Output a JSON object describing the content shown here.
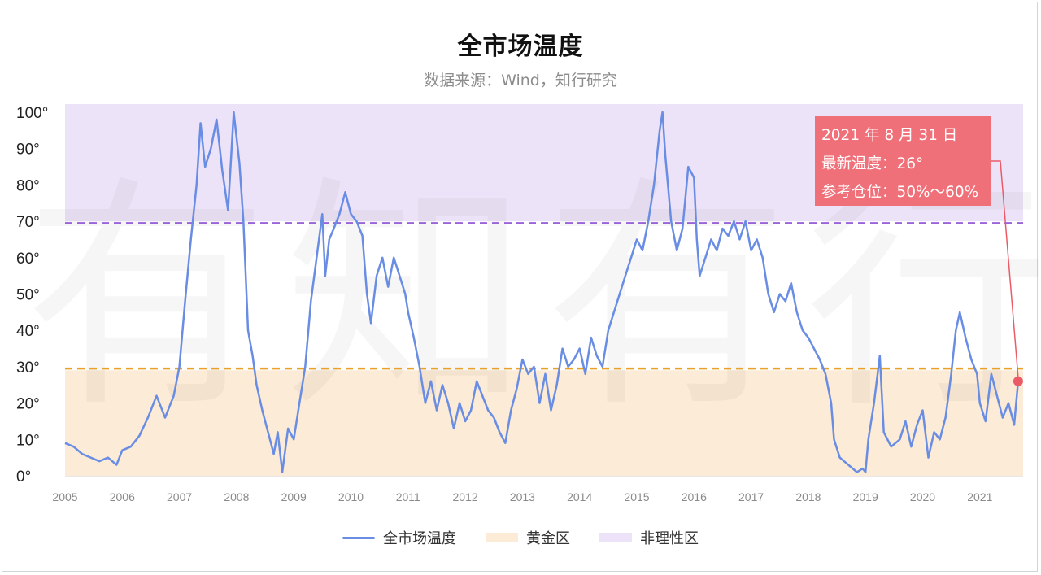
{
  "title": "全市场温度",
  "subtitle": "数据来源：Wind，知行研究",
  "annotation": {
    "date": "2021 年 8 月 31 日",
    "latest": "最新温度：26°",
    "position": "参考仓位：50%～60%"
  },
  "legend": {
    "line": "全市场温度",
    "gold": "黄金区",
    "irrational": "非理性区"
  },
  "colors": {
    "line": "#6a8de4",
    "gold_zone": "#fcebd6",
    "irrational_zone": "#ede3f8",
    "gold_threshold": "#eaa12a",
    "irrational_threshold": "#9b63d9",
    "marker": "#ea5b67"
  },
  "chart_data": {
    "type": "line",
    "title": "全市场温度",
    "subtitle": "数据来源：Wind，知行研究",
    "xlabel": "",
    "ylabel": "",
    "xlim": [
      2005,
      2021.85
    ],
    "ylim": [
      0,
      100
    ],
    "x_ticks": [
      "2005",
      "2006",
      "2007",
      "2008",
      "2009",
      "2010",
      "2011",
      "2012",
      "2013",
      "2014",
      "2015",
      "2016",
      "2017",
      "2018",
      "2019",
      "2020",
      "2021"
    ],
    "y_ticks": [
      "0°",
      "10°",
      "20°",
      "30°",
      "40°",
      "50°",
      "60°",
      "70°",
      "80°",
      "90°",
      "100°"
    ],
    "bands": [
      {
        "name": "黄金区",
        "from": 0,
        "to": 29
      },
      {
        "name": "非理性区",
        "from": 70,
        "to": 101
      }
    ],
    "thresholds": [
      {
        "name": "黄金区",
        "value": 29.5
      },
      {
        "name": "非理性区",
        "value": 69.5
      }
    ],
    "series": [
      {
        "name": "全市场温度",
        "points": [
          [
            2005.0,
            9
          ],
          [
            2005.15,
            8
          ],
          [
            2005.3,
            6
          ],
          [
            2005.45,
            5
          ],
          [
            2005.6,
            4
          ],
          [
            2005.75,
            5
          ],
          [
            2005.9,
            3
          ],
          [
            2006.0,
            7
          ],
          [
            2006.15,
            8
          ],
          [
            2006.3,
            11
          ],
          [
            2006.45,
            16
          ],
          [
            2006.6,
            22
          ],
          [
            2006.75,
            16
          ],
          [
            2006.9,
            22
          ],
          [
            2007.0,
            30
          ],
          [
            2007.1,
            48
          ],
          [
            2007.2,
            65
          ],
          [
            2007.3,
            80
          ],
          [
            2007.37,
            97
          ],
          [
            2007.45,
            85
          ],
          [
            2007.55,
            90
          ],
          [
            2007.65,
            98
          ],
          [
            2007.75,
            84
          ],
          [
            2007.85,
            73
          ],
          [
            2007.95,
            100
          ],
          [
            2008.05,
            86
          ],
          [
            2008.12,
            70
          ],
          [
            2008.2,
            40
          ],
          [
            2008.28,
            33
          ],
          [
            2008.35,
            25
          ],
          [
            2008.45,
            18
          ],
          [
            2008.55,
            12
          ],
          [
            2008.65,
            6
          ],
          [
            2008.72,
            12
          ],
          [
            2008.8,
            1
          ],
          [
            2008.9,
            13
          ],
          [
            2009.0,
            10
          ],
          [
            2009.1,
            20
          ],
          [
            2009.2,
            30
          ],
          [
            2009.3,
            48
          ],
          [
            2009.4,
            60
          ],
          [
            2009.5,
            72
          ],
          [
            2009.55,
            55
          ],
          [
            2009.62,
            65
          ],
          [
            2009.7,
            68
          ],
          [
            2009.8,
            72
          ],
          [
            2009.9,
            78
          ],
          [
            2010.0,
            72
          ],
          [
            2010.1,
            70
          ],
          [
            2010.2,
            66
          ],
          [
            2010.28,
            50
          ],
          [
            2010.35,
            42
          ],
          [
            2010.45,
            55
          ],
          [
            2010.55,
            60
          ],
          [
            2010.65,
            52
          ],
          [
            2010.75,
            60
          ],
          [
            2010.85,
            55
          ],
          [
            2010.95,
            50
          ],
          [
            2011.0,
            45
          ],
          [
            2011.1,
            38
          ],
          [
            2011.2,
            30
          ],
          [
            2011.3,
            20
          ],
          [
            2011.4,
            26
          ],
          [
            2011.5,
            18
          ],
          [
            2011.6,
            25
          ],
          [
            2011.7,
            20
          ],
          [
            2011.8,
            13
          ],
          [
            2011.9,
            20
          ],
          [
            2012.0,
            15
          ],
          [
            2012.1,
            18
          ],
          [
            2012.2,
            26
          ],
          [
            2012.3,
            22
          ],
          [
            2012.4,
            18
          ],
          [
            2012.5,
            16
          ],
          [
            2012.6,
            12
          ],
          [
            2012.7,
            9
          ],
          [
            2012.8,
            18
          ],
          [
            2012.9,
            24
          ],
          [
            2013.0,
            32
          ],
          [
            2013.1,
            28
          ],
          [
            2013.2,
            30
          ],
          [
            2013.3,
            20
          ],
          [
            2013.4,
            28
          ],
          [
            2013.5,
            18
          ],
          [
            2013.6,
            25
          ],
          [
            2013.7,
            35
          ],
          [
            2013.8,
            30
          ],
          [
            2013.9,
            32
          ],
          [
            2014.0,
            35
          ],
          [
            2014.1,
            28
          ],
          [
            2014.2,
            38
          ],
          [
            2014.3,
            33
          ],
          [
            2014.4,
            30
          ],
          [
            2014.5,
            40
          ],
          [
            2014.6,
            45
          ],
          [
            2014.7,
            50
          ],
          [
            2014.8,
            55
          ],
          [
            2014.9,
            60
          ],
          [
            2015.0,
            65
          ],
          [
            2015.1,
            62
          ],
          [
            2015.2,
            70
          ],
          [
            2015.3,
            80
          ],
          [
            2015.4,
            95
          ],
          [
            2015.45,
            100
          ],
          [
            2015.5,
            88
          ],
          [
            2015.6,
            70
          ],
          [
            2015.7,
            62
          ],
          [
            2015.8,
            68
          ],
          [
            2015.9,
            85
          ],
          [
            2016.0,
            82
          ],
          [
            2016.05,
            65
          ],
          [
            2016.1,
            55
          ],
          [
            2016.2,
            60
          ],
          [
            2016.3,
            65
          ],
          [
            2016.4,
            62
          ],
          [
            2016.5,
            68
          ],
          [
            2016.6,
            66
          ],
          [
            2016.7,
            70
          ],
          [
            2016.8,
            65
          ],
          [
            2016.9,
            70
          ],
          [
            2017.0,
            62
          ],
          [
            2017.1,
            65
          ],
          [
            2017.2,
            60
          ],
          [
            2017.3,
            50
          ],
          [
            2017.4,
            45
          ],
          [
            2017.5,
            50
          ],
          [
            2017.6,
            48
          ],
          [
            2017.7,
            53
          ],
          [
            2017.8,
            45
          ],
          [
            2017.9,
            40
          ],
          [
            2018.0,
            38
          ],
          [
            2018.1,
            35
          ],
          [
            2018.2,
            32
          ],
          [
            2018.3,
            28
          ],
          [
            2018.4,
            20
          ],
          [
            2018.45,
            10
          ],
          [
            2018.55,
            5
          ],
          [
            2018.7,
            3
          ],
          [
            2018.85,
            1
          ],
          [
            2018.95,
            2
          ],
          [
            2019.0,
            1
          ],
          [
            2019.05,
            10
          ],
          [
            2019.15,
            20
          ],
          [
            2019.25,
            33
          ],
          [
            2019.32,
            12
          ],
          [
            2019.45,
            8
          ],
          [
            2019.6,
            10
          ],
          [
            2019.7,
            15
          ],
          [
            2019.8,
            8
          ],
          [
            2019.9,
            14
          ],
          [
            2020.0,
            18
          ],
          [
            2020.1,
            5
          ],
          [
            2020.2,
            12
          ],
          [
            2020.3,
            10
          ],
          [
            2020.4,
            16
          ],
          [
            2020.5,
            28
          ],
          [
            2020.58,
            40
          ],
          [
            2020.65,
            45
          ],
          [
            2020.75,
            38
          ],
          [
            2020.85,
            32
          ],
          [
            2020.95,
            28
          ],
          [
            2021.0,
            20
          ],
          [
            2021.1,
            15
          ],
          [
            2021.2,
            28
          ],
          [
            2021.3,
            22
          ],
          [
            2021.4,
            16
          ],
          [
            2021.5,
            20
          ],
          [
            2021.6,
            14
          ],
          [
            2021.67,
            26
          ]
        ]
      }
    ],
    "latest_point": {
      "x": 2021.67,
      "y": 26,
      "label": "2021 年 8 月 31 日"
    },
    "watermark": "有知有行"
  }
}
